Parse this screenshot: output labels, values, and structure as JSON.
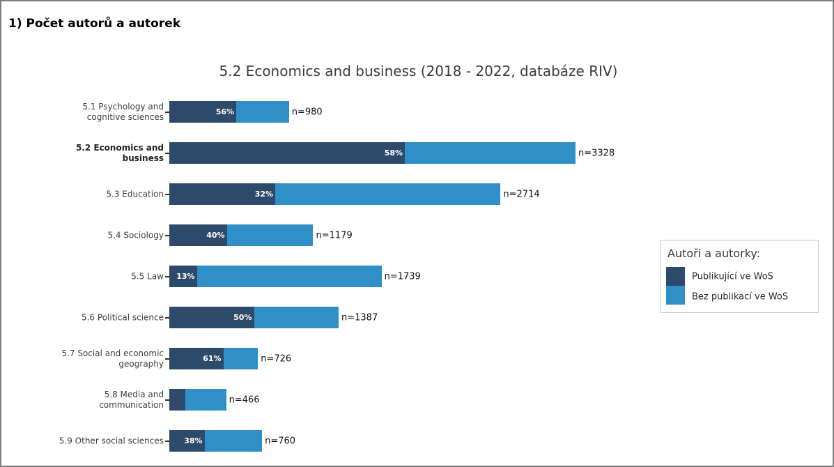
{
  "page": {
    "header": "1) Počet autorů a autorek"
  },
  "chart_data": {
    "type": "bar",
    "orientation": "horizontal",
    "stacked": true,
    "title": "5.2 Economics and business (2018 - 2022, databáze RIV)",
    "x_axis": {
      "visible": false,
      "unit": "počet autorů (n)"
    },
    "grid": false,
    "colors": {
      "wos": "#2E4A6B",
      "no_wos": "#2F8FC6"
    },
    "legend": {
      "title": "Autoři a autorky:",
      "position": "right",
      "entries": [
        {
          "label": "Publikující ve WoS",
          "color": "#2E4A6B"
        },
        {
          "label": "Bez publikací ve WoS",
          "color": "#2F8FC6"
        }
      ]
    },
    "rows": [
      {
        "category": "5.1 Psychology and cognitive sciences",
        "label_lines": [
          "5.1 Psychology and",
          "cognitive sciences"
        ],
        "highlight": false,
        "wos_pct": 56,
        "pct_label": "56%",
        "n": 980,
        "n_label": "n=980"
      },
      {
        "category": "5.2 Economics and business",
        "label_lines": [
          "5.2 Economics and",
          "business"
        ],
        "highlight": true,
        "wos_pct": 58,
        "pct_label": "58%",
        "n": 3328,
        "n_label": "n=3328"
      },
      {
        "category": "5.3 Education",
        "label_lines": [
          "5.3 Education"
        ],
        "highlight": false,
        "wos_pct": 32,
        "pct_label": "32%",
        "n": 2714,
        "n_label": "n=2714"
      },
      {
        "category": "5.4 Sociology",
        "label_lines": [
          "5.4 Sociology"
        ],
        "highlight": false,
        "wos_pct": 40,
        "pct_label": "40%",
        "n": 1179,
        "n_label": "n=1179"
      },
      {
        "category": "5.5 Law",
        "label_lines": [
          "5.5 Law"
        ],
        "highlight": false,
        "wos_pct": 13,
        "pct_label": "13%",
        "n": 1739,
        "n_label": "n=1739"
      },
      {
        "category": "5.6 Political science",
        "label_lines": [
          "5.6 Political science"
        ],
        "highlight": false,
        "wos_pct": 50,
        "pct_label": "50%",
        "n": 1387,
        "n_label": "n=1387"
      },
      {
        "category": "5.7 Social and economic geography",
        "label_lines": [
          "5.7 Social and economic",
          "geography"
        ],
        "highlight": false,
        "wos_pct": 61,
        "pct_label": "61%",
        "n": 726,
        "n_label": "n=726"
      },
      {
        "category": "5.8 Media and communication",
        "label_lines": [
          "5.8 Media and",
          "communication"
        ],
        "highlight": false,
        "wos_pct": 28,
        "pct_label": null,
        "n": 466,
        "n_label": "n=466"
      },
      {
        "category": "5.9 Other social sciences",
        "label_lines": [
          "5.9 Other social sciences"
        ],
        "highlight": false,
        "wos_pct": 38,
        "pct_label": "38%",
        "n": 760,
        "n_label": "n=760"
      }
    ]
  }
}
